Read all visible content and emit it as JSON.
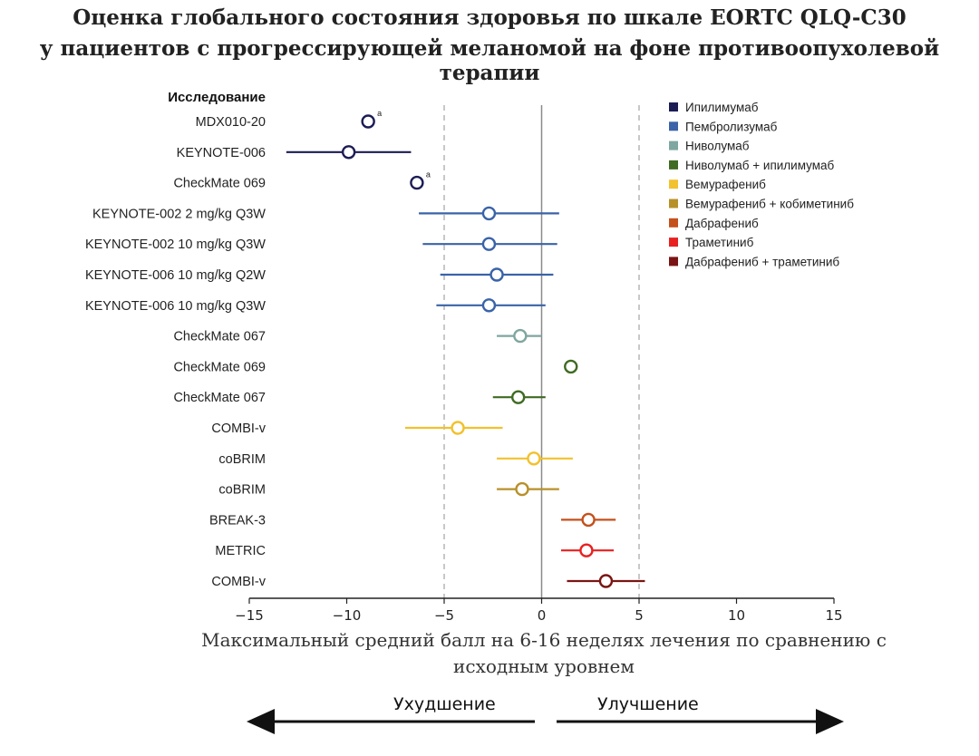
{
  "title": {
    "line1": "Оценка глобального состояния здоровья по шкале EORTC QLQ-C30",
    "line2_prefix": "у пациентов с ",
    "line2_bold": "прогрессирующей",
    "line2_suffix": " меланомой на фоне противоопухолевой терапии"
  },
  "direction": {
    "worse": "Ухудшение",
    "better": "Улучшение"
  },
  "chart_data": {
    "type": "forest",
    "title": "Оценка глобального состояния здоровья по шкале EORTC QLQ-C30 у пациентов с прогрессирующей меланомой на фоне противоопухолевой терапии",
    "column_header": "Исследование",
    "xlabel": "Максимальный средний балл на 6-16 неделях лечения по сравнению с исходным уровнем",
    "xlim": [
      -15,
      15
    ],
    "xticks": [
      -15,
      -10,
      -5,
      0,
      5,
      10,
      15
    ],
    "xtick_labels": [
      "−15",
      "−10",
      "−5",
      "0",
      "5",
      "10",
      "15"
    ],
    "reference_lines": [
      -5,
      5
    ],
    "zero_line": 0,
    "legend_position": "top-right",
    "legend": [
      {
        "name": "Ипилимумаб",
        "color": "#1c1c55"
      },
      {
        "name": "Пембролизумаб",
        "color": "#3a63a8"
      },
      {
        "name": "Ниволумаб",
        "color": "#7fa6a0"
      },
      {
        "name": "Ниволумаб + ипилимумаб",
        "color": "#3f6b22"
      },
      {
        "name": "Вемурафениб",
        "color": "#f2c12e"
      },
      {
        "name": "Вемурафениб + кобиметиниб",
        "color": "#b8902a"
      },
      {
        "name": "Дабрафениб",
        "color": "#c4501c"
      },
      {
        "name": "Траметиниб",
        "color": "#e82020"
      },
      {
        "name": "Дабрафениб + траметиниб",
        "color": "#7a1414"
      }
    ],
    "studies": [
      {
        "label": "MDX010-20",
        "group": 0,
        "est": -8.9,
        "lo": null,
        "hi": null,
        "note": "a"
      },
      {
        "label": "KEYNOTE-006",
        "group": 0,
        "est": -9.9,
        "lo": -13.1,
        "hi": -6.7,
        "note": ""
      },
      {
        "label": "CheckMate 069",
        "group": 0,
        "est": -6.4,
        "lo": null,
        "hi": null,
        "note": "a"
      },
      {
        "label": "KEYNOTE-002 2 mg/kg Q3W",
        "group": 1,
        "est": -2.7,
        "lo": -6.3,
        "hi": 0.9,
        "note": ""
      },
      {
        "label": "KEYNOTE-002 10 mg/kg Q3W",
        "group": 1,
        "est": -2.7,
        "lo": -6.1,
        "hi": 0.8,
        "note": ""
      },
      {
        "label": "KEYNOTE-006 10 mg/kg Q2W",
        "group": 1,
        "est": -2.3,
        "lo": -5.2,
        "hi": 0.6,
        "note": ""
      },
      {
        "label": "KEYNOTE-006 10 mg/kg Q3W",
        "group": 1,
        "est": -2.7,
        "lo": -5.4,
        "hi": 0.2,
        "note": ""
      },
      {
        "label": "CheckMate 067",
        "group": 2,
        "est": -1.1,
        "lo": -2.3,
        "hi": 0.0,
        "note": ""
      },
      {
        "label": "CheckMate 069",
        "group": 3,
        "est": 1.5,
        "lo": null,
        "hi": null,
        "note": ""
      },
      {
        "label": "CheckMate 067",
        "group": 3,
        "est": -1.2,
        "lo": -2.5,
        "hi": 0.2,
        "note": ""
      },
      {
        "label": "COMBI-v",
        "group": 4,
        "est": -4.3,
        "lo": -7.0,
        "hi": -2.0,
        "note": ""
      },
      {
        "label": "coBRIM",
        "group": 4,
        "est": -0.4,
        "lo": -2.3,
        "hi": 1.6,
        "note": ""
      },
      {
        "label": "coBRIM",
        "group": 5,
        "est": -1.0,
        "lo": -2.3,
        "hi": 0.9,
        "note": ""
      },
      {
        "label": "BREAK-3",
        "group": 6,
        "est": 2.4,
        "lo": 1.0,
        "hi": 3.8,
        "note": ""
      },
      {
        "label": "METRIC",
        "group": 7,
        "est": 2.3,
        "lo": 1.0,
        "hi": 3.7,
        "note": ""
      },
      {
        "label": "COMBI-v",
        "group": 8,
        "est": 3.3,
        "lo": 1.3,
        "hi": 5.3,
        "note": ""
      }
    ]
  }
}
